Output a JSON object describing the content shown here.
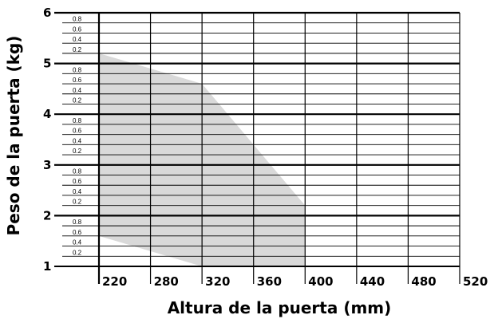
{
  "chart_data": {
    "type": "area",
    "xlabel": "Altura de la puerta (mm)",
    "ylabel": "Peso de la puerta (kg)",
    "x_ticks": [
      "220",
      "280",
      "320",
      "360",
      "400",
      "440",
      "480",
      "520"
    ],
    "y_major_ticks": [
      "1",
      "2",
      "3",
      "4",
      "5",
      "6"
    ],
    "y_minor_ticks": [
      "0.2",
      "0.4",
      "0.6",
      "0.8"
    ],
    "ylim": [
      1,
      6
    ],
    "grid": true,
    "shade_color": "#d9d9d9",
    "region": {
      "name": "",
      "x": [
        "220",
        "220",
        "320",
        "400",
        "400",
        "320",
        "220"
      ],
      "y": [
        1.6,
        5.2,
        4.6,
        2.2,
        1.0,
        1.0,
        1.6
      ]
    }
  }
}
